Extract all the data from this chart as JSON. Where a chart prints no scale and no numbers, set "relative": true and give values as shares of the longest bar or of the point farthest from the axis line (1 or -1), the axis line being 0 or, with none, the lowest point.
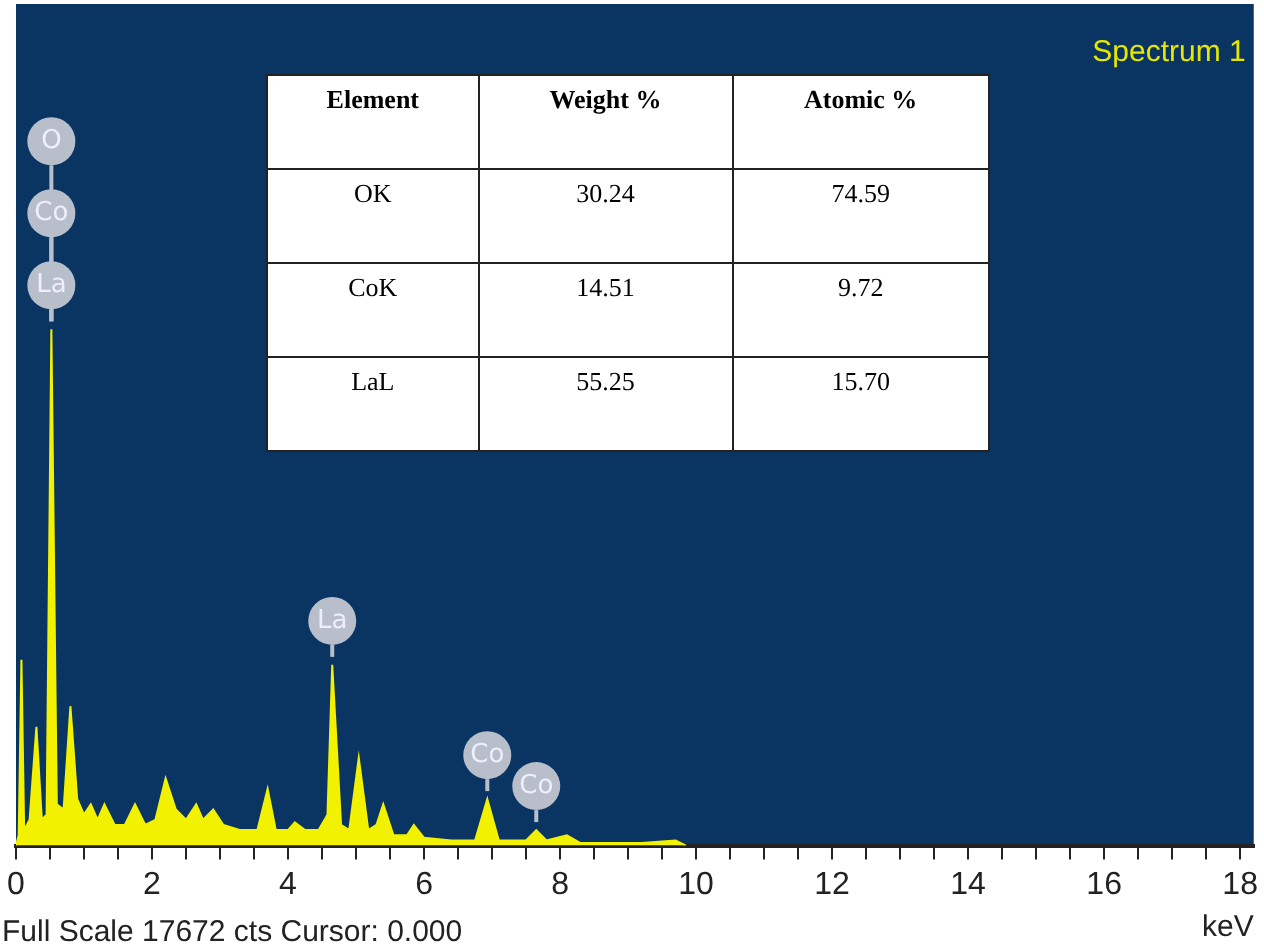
{
  "chart_data": [
    {
      "type": "area",
      "relative": true,
      "color": "#f2f200",
      "xlabel": "keV",
      "xlim": [
        0,
        18.2
      ],
      "xticks": [
        0,
        {
          "value": 0.5,
          "label": null
        },
        2,
        {
          "value": 1,
          "label": null
        },
        {
          "value": 1.5,
          "label": null
        },
        {
          "value": 2.5,
          "label": null
        },
        {
          "value": 3,
          "label": null
        },
        {
          "value": 3.5,
          "label": null
        },
        4,
        {
          "value": 4.5,
          "label": null
        },
        {
          "value": 5,
          "label": null
        },
        {
          "value": 5.5,
          "label": null
        },
        6,
        {
          "value": 6.5,
          "label": null
        },
        {
          "value": 7,
          "label": null
        },
        {
          "value": 7.5,
          "label": null
        },
        8,
        {
          "value": 8.5,
          "label": null
        },
        {
          "value": 9,
          "label": null
        },
        {
          "value": 9.5,
          "label": null
        },
        10,
        {
          "value": 10.5,
          "label": null
        },
        {
          "value": 11,
          "label": null
        },
        {
          "value": 11.5,
          "label": null
        },
        12,
        {
          "value": 12.5,
          "label": null
        },
        {
          "value": 13,
          "label": null
        },
        {
          "value": 13.5,
          "label": null
        },
        14,
        {
          "value": 14.5,
          "label": null
        },
        {
          "value": 15,
          "label": null
        },
        {
          "value": 15.5,
          "label": null
        },
        16,
        {
          "value": 16.5,
          "label": null
        },
        {
          "value": 17,
          "label": null
        },
        {
          "value": 17.5,
          "label": null
        },
        18
      ],
      "x": [
        0,
        0.04,
        0.08,
        0.12,
        0.2,
        0.3,
        0.38,
        0.45,
        0.52,
        0.6,
        0.7,
        0.8,
        0.9,
        1.0,
        1.1,
        1.2,
        1.3,
        1.45,
        1.6,
        1.75,
        1.9,
        2.05,
        2.2,
        2.35,
        2.5,
        2.65,
        2.75,
        2.9,
        3.05,
        3.3,
        3.55,
        3.7,
        3.82,
        4.0,
        4.1,
        4.25,
        4.45,
        4.58,
        4.65,
        4.78,
        4.9,
        5.04,
        5.18,
        5.3,
        5.4,
        5.55,
        5.75,
        5.85,
        6.0,
        6.4,
        6.75,
        6.93,
        7.1,
        7.5,
        7.65,
        7.8,
        8.1,
        8.3,
        9.2,
        9.7,
        9.85
      ],
      "values": [
        0,
        0.02,
        0.36,
        0.03,
        0.05,
        0.23,
        0.05,
        0.06,
        1.0,
        0.08,
        0.07,
        0.27,
        0.09,
        0.06,
        0.08,
        0.05,
        0.08,
        0.04,
        0.04,
        0.08,
        0.04,
        0.05,
        0.13,
        0.07,
        0.05,
        0.08,
        0.05,
        0.07,
        0.04,
        0.03,
        0.03,
        0.11,
        0.03,
        0.03,
        0.045,
        0.03,
        0.03,
        0.06,
        0.35,
        0.04,
        0.03,
        0.17,
        0.03,
        0.04,
        0.08,
        0.02,
        0.02,
        0.04,
        0.015,
        0.01,
        0.01,
        0.09,
        0.01,
        0.01,
        0.03,
        0.01,
        0.02,
        0.005,
        0.005,
        0.01,
        0
      ],
      "annotations": [
        "Spectrum 1",
        "Full Scale 17672 cts Cursor: 0.000",
        {
          "text": "O",
          "x": 0.52,
          "y": 1.0
        },
        {
          "text": "Co",
          "x": 0.52,
          "y": 1.0
        },
        {
          "text": "La",
          "x": 0.52,
          "y": 1.0
        },
        {
          "text": "La",
          "x": 4.65,
          "y": 0.35
        },
        {
          "text": "Co",
          "x": 6.93,
          "y": 0.09
        },
        {
          "text": "Co",
          "x": 7.65,
          "y": 0.03
        }
      ]
    },
    {
      "type": "other",
      "annotations": [
        "Element",
        "Weight %",
        "Atomic %",
        "OK",
        "30.24",
        "74.59",
        "CoK",
        "14.51",
        "9.72",
        "LaL",
        "55.25",
        "15.70"
      ]
    }
  ]
}
